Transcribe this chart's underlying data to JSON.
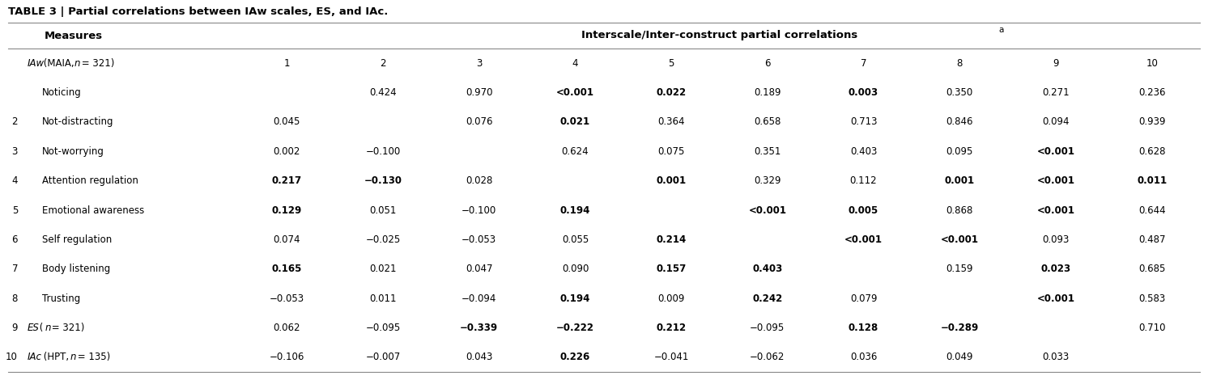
{
  "title": "TABLE 3 | Partial correlations between IAw scales, ES, and IAc.",
  "measures_header": "Measures",
  "interscale_header": "Interscale/Inter-construct partial correlations",
  "interscale_superscript": "a",
  "col_nums": [
    "1",
    "2",
    "3",
    "4",
    "5",
    "6",
    "7",
    "8",
    "9",
    "10"
  ],
  "rows": [
    {
      "num": "",
      "label_parts": [
        {
          "text": "IAw",
          "italic": true
        },
        {
          "text": " (MAIA, ",
          "italic": false
        },
        {
          "text": "n",
          "italic": true
        },
        {
          "text": " = 321)",
          "italic": false
        }
      ],
      "indent": false,
      "values": [
        "1",
        "2",
        "3",
        "4",
        "5",
        "6",
        "7",
        "8",
        "9",
        "10"
      ],
      "bold": [
        false,
        false,
        false,
        false,
        false,
        false,
        false,
        false,
        false,
        false
      ]
    },
    {
      "num": "",
      "label_parts": [
        {
          "text": "Noticing",
          "italic": false
        }
      ],
      "indent": true,
      "values": [
        "",
        "0.424",
        "0.970",
        "<0.001",
        "0.022",
        "0.189",
        "0.003",
        "0.350",
        "0.271",
        "0.236"
      ],
      "bold": [
        false,
        false,
        false,
        true,
        true,
        false,
        true,
        false,
        false,
        false
      ]
    },
    {
      "num": "2",
      "label_parts": [
        {
          "text": "Not-distracting",
          "italic": false
        }
      ],
      "indent": true,
      "values": [
        "0.045",
        "",
        "0.076",
        "0.021",
        "0.364",
        "0.658",
        "0.713",
        "0.846",
        "0.094",
        "0.939"
      ],
      "bold": [
        false,
        false,
        false,
        true,
        false,
        false,
        false,
        false,
        false,
        false
      ]
    },
    {
      "num": "3",
      "label_parts": [
        {
          "text": "Not-worrying",
          "italic": false
        }
      ],
      "indent": true,
      "values": [
        "0.002",
        "−0.100",
        "",
        "0.624",
        "0.075",
        "0.351",
        "0.403",
        "0.095",
        "<0.001",
        "0.628"
      ],
      "bold": [
        false,
        false,
        false,
        false,
        false,
        false,
        false,
        false,
        true,
        false
      ]
    },
    {
      "num": "4",
      "label_parts": [
        {
          "text": "Attention regulation",
          "italic": false
        }
      ],
      "indent": true,
      "values": [
        "0.217",
        "−0.130",
        "0.028",
        "",
        "0.001",
        "0.329",
        "0.112",
        "0.001",
        "<0.001",
        "0.011"
      ],
      "bold": [
        true,
        true,
        false,
        false,
        true,
        false,
        false,
        true,
        true,
        true
      ]
    },
    {
      "num": "5",
      "label_parts": [
        {
          "text": "Emotional awareness",
          "italic": false
        }
      ],
      "indent": true,
      "values": [
        "0.129",
        "0.051",
        "−0.100",
        "0.194",
        "",
        "<0.001",
        "0.005",
        "0.868",
        "<0.001",
        "0.644"
      ],
      "bold": [
        true,
        false,
        false,
        true,
        false,
        true,
        true,
        false,
        true,
        false
      ]
    },
    {
      "num": "6",
      "label_parts": [
        {
          "text": "Self regulation",
          "italic": false
        }
      ],
      "indent": true,
      "values": [
        "0.074",
        "−0.025",
        "−0.053",
        "0.055",
        "0.214",
        "",
        "<0.001",
        "<0.001",
        "0.093",
        "0.487"
      ],
      "bold": [
        false,
        false,
        false,
        false,
        true,
        false,
        true,
        true,
        false,
        false
      ]
    },
    {
      "num": "7",
      "label_parts": [
        {
          "text": "Body listening",
          "italic": false
        }
      ],
      "indent": true,
      "values": [
        "0.165",
        "0.021",
        "0.047",
        "0.090",
        "0.157",
        "0.403",
        "",
        "0.159",
        "0.023",
        "0.685"
      ],
      "bold": [
        true,
        false,
        false,
        false,
        true,
        true,
        false,
        false,
        true,
        false
      ]
    },
    {
      "num": "8",
      "label_parts": [
        {
          "text": "Trusting",
          "italic": false
        }
      ],
      "indent": true,
      "values": [
        "−0.053",
        "0.011",
        "−0.094",
        "0.194",
        "0.009",
        "0.242",
        "0.079",
        "",
        "<0.001",
        "0.583"
      ],
      "bold": [
        false,
        false,
        false,
        true,
        false,
        true,
        false,
        false,
        true,
        false
      ]
    },
    {
      "num": "9",
      "label_parts": [
        {
          "text": "ES",
          "italic": true
        },
        {
          "text": " (",
          "italic": false
        },
        {
          "text": "n",
          "italic": true
        },
        {
          "text": " = 321)",
          "italic": false
        }
      ],
      "indent": false,
      "values": [
        "0.062",
        "−0.095",
        "−0.339",
        "−0.222",
        "0.212",
        "−0.095",
        "0.128",
        "−0.289",
        "",
        "0.710"
      ],
      "bold": [
        false,
        false,
        true,
        true,
        true,
        false,
        true,
        true,
        false,
        false
      ]
    },
    {
      "num": "10",
      "label_parts": [
        {
          "text": "IAc",
          "italic": true
        },
        {
          "text": " (HPT, ",
          "italic": false
        },
        {
          "text": "n",
          "italic": true
        },
        {
          "text": " = 135)",
          "italic": false
        }
      ],
      "indent": false,
      "values": [
        "−0.106",
        "−0.007",
        "0.043",
        "0.226",
        "−0.041",
        "−0.062",
        "0.036",
        "0.049",
        "0.033",
        ""
      ],
      "bold": [
        false,
        false,
        false,
        true,
        false,
        false,
        false,
        false,
        false,
        false
      ]
    }
  ],
  "bg_color": "#ffffff",
  "line_color": "#000000",
  "text_color": "#000000",
  "font_size": 8.5,
  "title_font_size": 9.5,
  "header_font_size": 9.5
}
